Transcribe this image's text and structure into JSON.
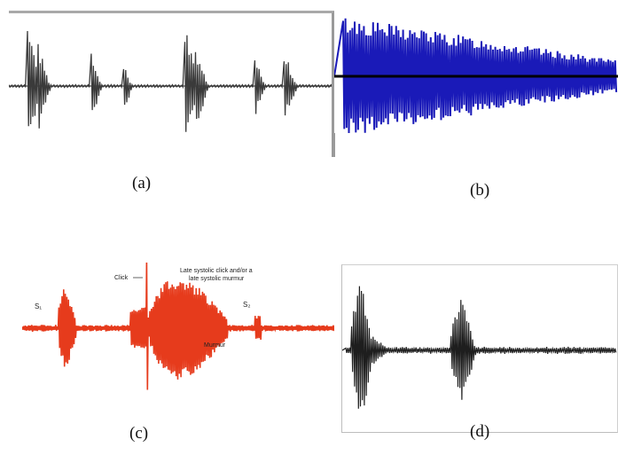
{
  "panels": [
    {
      "id": "a",
      "caption": "(a)",
      "color": "#3a3a3a",
      "baseline_color": "#8f8f8f",
      "frame_color": "#a9a9a9"
    },
    {
      "id": "b",
      "caption": "(b)",
      "color": "#1a1ab8",
      "baseline_color": "#000000"
    },
    {
      "id": "c",
      "caption": "(c)",
      "color": "#e63b1c",
      "annotations": {
        "s1": "S₁",
        "click": "Click",
        "late_systolic_line1": "Late systolic click and/or a",
        "late_systolic_line2": "late systolic murmur",
        "s2": "S₂",
        "murmur": "Murmur"
      }
    },
    {
      "id": "d",
      "caption": "(d)",
      "color": "#1e1e1e",
      "frame_color": "#bdbdbd"
    }
  ]
}
